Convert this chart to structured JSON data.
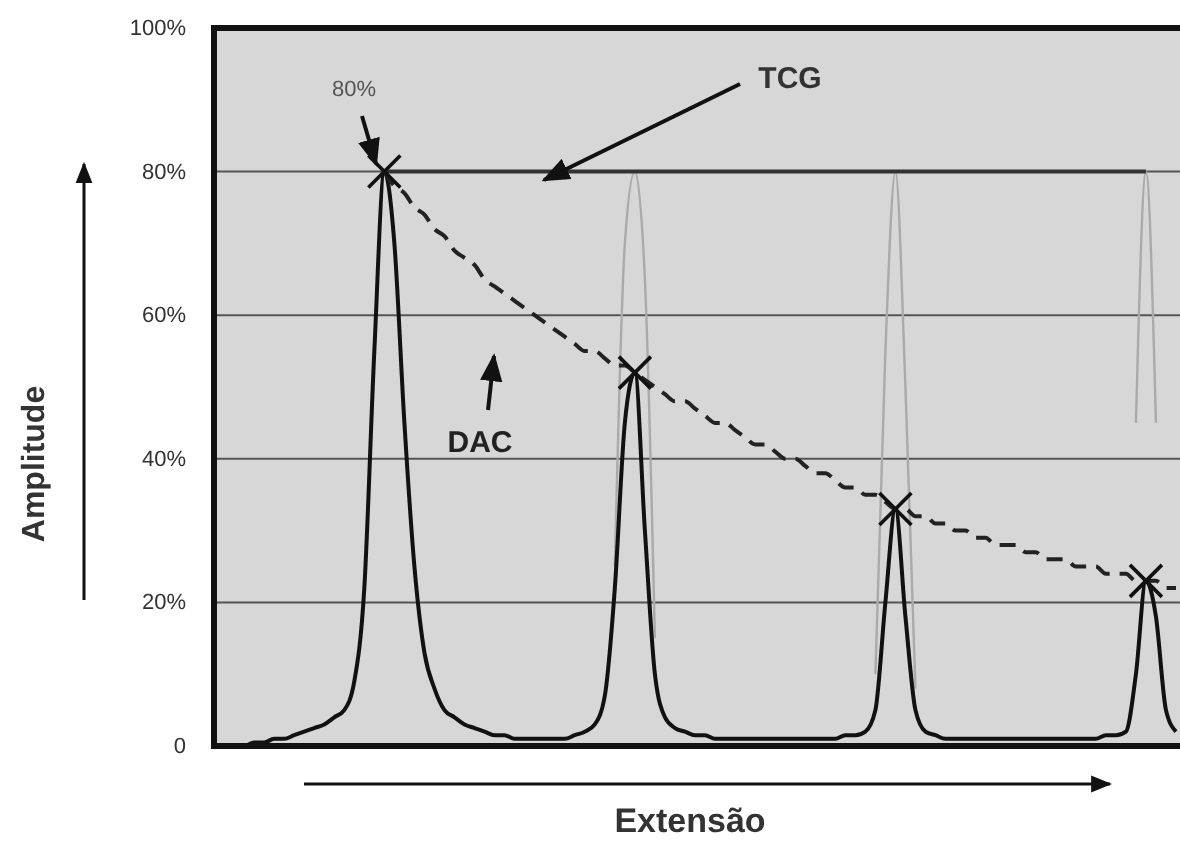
{
  "chart_data": {
    "type": "line",
    "xlabel": "Extensão",
    "ylabel": "Amplitude",
    "categories": [
      null,
      null,
      null,
      null,
      null,
      null,
      null,
      null,
      null,
      null,
      null,
      null,
      null,
      null,
      null,
      null,
      null,
      null,
      null,
      null,
      null,
      null,
      null,
      null,
      null,
      null,
      null,
      null,
      null,
      null,
      null,
      null,
      null,
      null,
      null,
      null,
      null,
      null,
      null,
      null,
      null,
      null,
      null,
      null,
      null,
      null,
      null,
      null,
      null,
      null,
      null,
      null,
      null,
      null,
      null,
      null,
      null,
      null,
      null,
      null,
      null,
      null,
      null,
      null,
      null,
      null,
      null,
      null,
      null,
      null,
      null,
      null,
      null,
      null,
      null,
      null,
      null,
      null,
      null,
      null,
      null,
      null,
      null,
      null,
      null,
      null,
      null,
      null,
      null,
      null,
      null,
      null,
      null,
      null,
      null,
      null,
      null
    ],
    "ylim": [
      0,
      100
    ],
    "yticks": [
      0,
      {
        "value": 20,
        "label": "20%"
      },
      {
        "value": 40,
        "label": "40%"
      },
      {
        "value": 60,
        "label": "60%"
      },
      {
        "value": 80,
        "label": "80%"
      },
      {
        "value": 100,
        "label": "100%"
      }
    ],
    "grid": "y",
    "annotations": [
      "80%"
    ],
    "series": [
      {
        "color": "#aaaaaa",
        "values": [
          null,
          null,
          null,
          null,
          null,
          null,
          null,
          null,
          null,
          null,
          null,
          null,
          null,
          null,
          null,
          null,
          null,
          null,
          null,
          null,
          null,
          null,
          null,
          null,
          null,
          null,
          null,
          null,
          null,
          null,
          null,
          null,
          null,
          null,
          null,
          null,
          null,
          null,
          null,
          null,
          25,
          70,
          80,
          65,
          15,
          null,
          null,
          null,
          null,
          null,
          null,
          null,
          null,
          null,
          null,
          null,
          null,
          null,
          null,
          null,
          null,
          null,
          null,
          null,
          null,
          null,
          10,
          55,
          80,
          50,
          8,
          null,
          null,
          null,
          null,
          null,
          null,
          null,
          null,
          null,
          null,
          null,
          null,
          null,
          null,
          null,
          null,
          null,
          null,
          null,
          null,
          null,
          45,
          80,
          45,
          null,
          null
        ]
      },
      {
        "color": "#111111",
        "values": [
          0,
          0,
          0,
          0,
          0.5,
          0.5,
          1,
          1,
          1.5,
          2,
          2.5,
          3,
          4,
          5,
          9,
          22,
          55,
          80,
          70,
          45,
          25,
          13,
          8,
          5,
          4,
          3,
          2.5,
          2,
          1.5,
          1.5,
          1,
          1,
          1,
          1,
          1,
          1,
          1.5,
          2,
          3,
          7,
          22,
          45,
          52,
          30,
          10,
          4,
          2.5,
          2,
          1.5,
          1.5,
          1,
          1,
          1,
          1,
          1,
          1,
          1,
          1,
          1,
          1,
          1,
          1,
          1,
          1.5,
          1.5,
          2,
          5,
          20,
          33,
          18,
          5,
          2,
          1.5,
          1,
          1,
          1,
          1,
          1,
          1,
          1,
          1,
          1,
          1,
          1,
          1,
          1,
          1,
          1,
          1,
          1.5,
          1.5,
          2,
          10,
          23,
          18,
          5,
          2
        ]
      },
      {
        "name": "TCG",
        "color": "#333333",
        "line_style": "solid",
        "values": [
          null,
          null,
          null,
          null,
          null,
          null,
          null,
          null,
          null,
          null,
          null,
          null,
          null,
          null,
          null,
          null,
          null,
          80,
          80,
          80,
          80,
          80,
          80,
          80,
          80,
          80,
          80,
          80,
          80,
          80,
          80,
          80,
          80,
          80,
          80,
          80,
          80,
          80,
          80,
          80,
          80,
          80,
          80,
          80,
          80,
          80,
          80,
          80,
          80,
          80,
          80,
          80,
          80,
          80,
          80,
          80,
          80,
          80,
          80,
          80,
          80,
          80,
          80,
          80,
          80,
          80,
          80,
          80,
          80,
          80,
          80,
          80,
          80,
          80,
          80,
          80,
          80,
          80,
          80,
          80,
          80,
          80,
          80,
          80,
          80,
          80,
          80,
          80,
          80,
          80,
          80,
          80,
          80,
          80,
          null,
          null,
          null
        ]
      },
      {
        "name": "DAC",
        "color": "#222222",
        "line_style": "dashed",
        "values": [
          null,
          null,
          null,
          null,
          null,
          null,
          null,
          null,
          null,
          null,
          null,
          null,
          null,
          null,
          null,
          null,
          null,
          80,
          78,
          77,
          75,
          74,
          72,
          71,
          69,
          68,
          67,
          65,
          64,
          63,
          62,
          61,
          60,
          59,
          58,
          57,
          56,
          55,
          55,
          54,
          53,
          53,
          52,
          51,
          50,
          49,
          48,
          48,
          47,
          46,
          45,
          45,
          44,
          43,
          42,
          42,
          41,
          40,
          40,
          39,
          38,
          38,
          37,
          36,
          36,
          35,
          35,
          34,
          33,
          33,
          32,
          32,
          31,
          31,
          30,
          30,
          29,
          29,
          28,
          28,
          28,
          27,
          27,
          26,
          26,
          26,
          25,
          25,
          25,
          24,
          24,
          24,
          23,
          23,
          23,
          22,
          22
        ]
      },
      {
        "type": "scatter",
        "color": "#111111",
        "marker": "cross",
        "values": [
          null,
          null,
          null,
          null,
          null,
          null,
          null,
          null,
          null,
          null,
          null,
          null,
          null,
          null,
          null,
          null,
          null,
          80,
          null,
          null,
          null,
          null,
          null,
          null,
          null,
          null,
          null,
          null,
          null,
          null,
          null,
          null,
          null,
          null,
          null,
          null,
          null,
          null,
          null,
          null,
          null,
          null,
          52,
          null,
          null,
          null,
          null,
          null,
          null,
          null,
          null,
          null,
          null,
          null,
          null,
          null,
          null,
          null,
          null,
          null,
          null,
          null,
          null,
          null,
          null,
          null,
          null,
          null,
          33,
          null,
          null,
          null,
          null,
          null,
          null,
          null,
          null,
          null,
          null,
          null,
          null,
          null,
          null,
          null,
          null,
          null,
          null,
          null,
          null,
          null,
          null,
          null,
          null,
          23,
          null,
          null,
          null
        ]
      }
    ]
  }
}
